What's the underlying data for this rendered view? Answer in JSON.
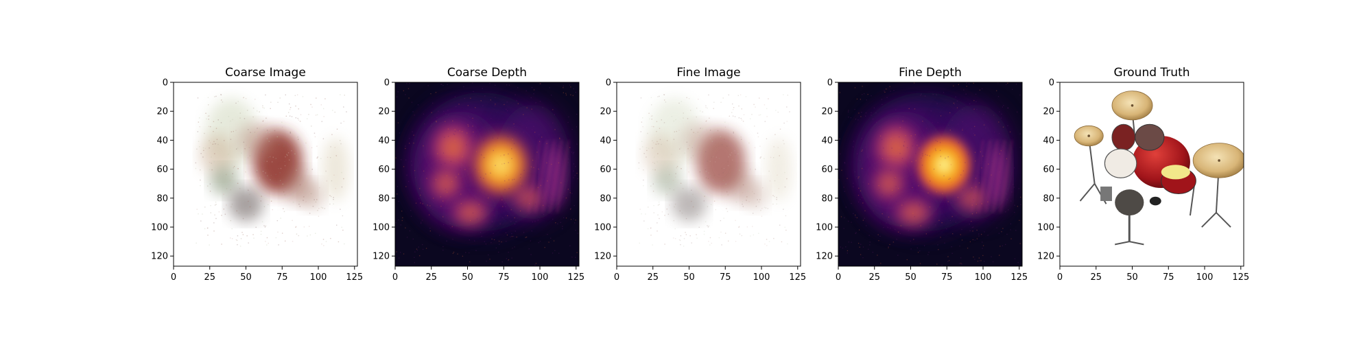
{
  "figure": {
    "background": "#ffffff"
  },
  "chart_data": [
    {
      "type": "heatmap",
      "title": "Coarse Image",
      "content": "blurry-rgb-render",
      "xlim": [
        0,
        127
      ],
      "ylim": [
        127,
        0
      ],
      "xticks": [
        0,
        25,
        50,
        75,
        100,
        125
      ],
      "yticks": [
        0,
        20,
        40,
        60,
        80,
        100,
        120
      ],
      "background": "#ffffff",
      "grid": false
    },
    {
      "type": "heatmap",
      "title": "Coarse Depth",
      "colormap": "inferno",
      "content": "depth-map",
      "xlim": [
        0,
        127
      ],
      "ylim": [
        127,
        0
      ],
      "xticks": [
        0,
        25,
        50,
        75,
        100,
        125
      ],
      "yticks": [
        0,
        20,
        40,
        60,
        80,
        100,
        120
      ],
      "background": "#0b0720",
      "grid": false
    },
    {
      "type": "heatmap",
      "title": "Fine Image",
      "content": "blurry-rgb-render",
      "xlim": [
        0,
        127
      ],
      "ylim": [
        127,
        0
      ],
      "xticks": [
        0,
        25,
        50,
        75,
        100,
        125
      ],
      "yticks": [
        0,
        20,
        40,
        60,
        80,
        100,
        120
      ],
      "background": "#ffffff",
      "grid": false
    },
    {
      "type": "heatmap",
      "title": "Fine Depth",
      "colormap": "inferno",
      "content": "depth-map",
      "xlim": [
        0,
        127
      ],
      "ylim": [
        127,
        0
      ],
      "xticks": [
        0,
        25,
        50,
        75,
        100,
        125
      ],
      "yticks": [
        0,
        20,
        40,
        60,
        80,
        100,
        120
      ],
      "background": "#0b0720",
      "grid": false
    },
    {
      "type": "heatmap",
      "title": "Ground Truth",
      "content": "drum-kit-photo",
      "xlim": [
        0,
        127
      ],
      "ylim": [
        127,
        0
      ],
      "xticks": [
        0,
        25,
        50,
        75,
        100,
        125
      ],
      "yticks": [
        0,
        20,
        40,
        60,
        80,
        100,
        120
      ],
      "background": "#ffffff",
      "grid": false
    }
  ]
}
